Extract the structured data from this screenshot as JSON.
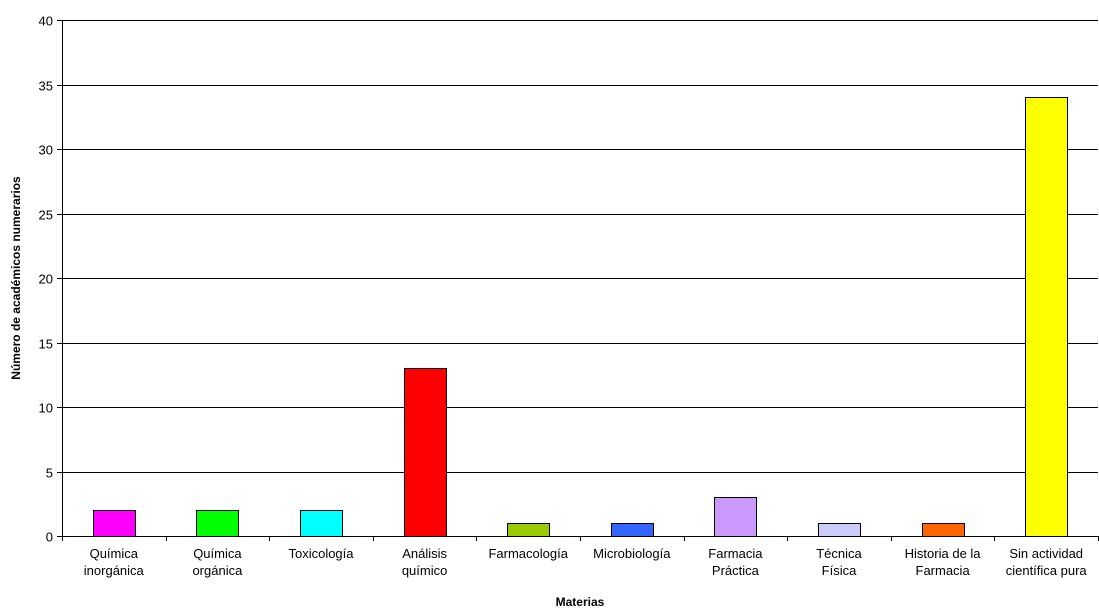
{
  "chart_data": {
    "type": "bar",
    "title": "",
    "xlabel": "Materias",
    "ylabel": "Número de académicos numerarios",
    "ylim": [
      0,
      40
    ],
    "yticks": [
      0,
      5,
      10,
      15,
      20,
      25,
      30,
      35,
      40
    ],
    "grid": true,
    "legend": "none",
    "categories": [
      [
        "Química",
        "inorgánica"
      ],
      [
        "Química",
        "orgánica"
      ],
      [
        "Toxicología"
      ],
      [
        "Análisis",
        "químico"
      ],
      [
        "Farmacología"
      ],
      [
        "Microbiología"
      ],
      [
        "Farmacia",
        "Práctica"
      ],
      [
        "Técnica",
        "Física"
      ],
      [
        "Historia de la",
        "Farmacia"
      ],
      [
        "Sin actividad",
        "científica pura"
      ]
    ],
    "values": [
      2,
      2,
      2,
      13,
      1,
      1,
      3,
      1,
      1,
      34
    ],
    "colors": [
      "#ff00ff",
      "#00ff00",
      "#00ffff",
      "#ff0000",
      "#99cc00",
      "#3366ff",
      "#cc99ff",
      "#ccccff",
      "#ff6600",
      "#ffff00"
    ]
  }
}
